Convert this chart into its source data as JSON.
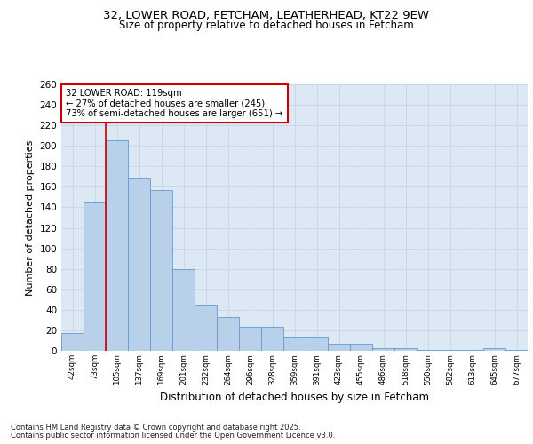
{
  "title1": "32, LOWER ROAD, FETCHAM, LEATHERHEAD, KT22 9EW",
  "title2": "Size of property relative to detached houses in Fetcham",
  "xlabel": "Distribution of detached houses by size in Fetcham",
  "ylabel": "Number of detached properties",
  "categories": [
    "42sqm",
    "73sqm",
    "105sqm",
    "137sqm",
    "169sqm",
    "201sqm",
    "232sqm",
    "264sqm",
    "296sqm",
    "328sqm",
    "359sqm",
    "391sqm",
    "423sqm",
    "455sqm",
    "486sqm",
    "518sqm",
    "550sqm",
    "582sqm",
    "613sqm",
    "645sqm",
    "677sqm"
  ],
  "values": [
    17,
    145,
    205,
    168,
    157,
    80,
    44,
    33,
    23,
    23,
    13,
    13,
    7,
    7,
    3,
    3,
    1,
    1,
    1,
    3,
    1
  ],
  "bar_color": "#b8d0ea",
  "bar_edge_color": "#6699cc",
  "property_line_index": 2,
  "annotation_title": "32 LOWER ROAD: 119sqm",
  "annotation_line1": "← 27% of detached houses are smaller (245)",
  "annotation_line2": "73% of semi-detached houses are larger (651) →",
  "annotation_box_color": "#ffffff",
  "annotation_box_edge": "#cc0000",
  "line_color": "#cc0000",
  "grid_color": "#c8d8e8",
  "bg_color": "#ffffff",
  "plot_bg_color": "#dce8f4",
  "footer1": "Contains HM Land Registry data © Crown copyright and database right 2025.",
  "footer2": "Contains public sector information licensed under the Open Government Licence v3.0.",
  "ylim": [
    0,
    260
  ],
  "yticks": [
    0,
    20,
    40,
    60,
    80,
    100,
    120,
    140,
    160,
    180,
    200,
    220,
    240,
    260
  ]
}
